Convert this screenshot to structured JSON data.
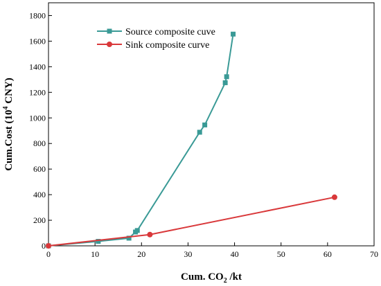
{
  "chart_data": {
    "type": "line",
    "xlabel_main": "Cum. CO",
    "xlabel_sub": "2",
    "xlabel_tail": " /kt",
    "ylabel_main": "Cum.Cost (10",
    "ylabel_sup": "4",
    "ylabel_tail": " CNY)",
    "xlim": [
      0,
      70
    ],
    "ylim": [
      0,
      1900
    ],
    "xticks": [
      0,
      10,
      20,
      30,
      40,
      50,
      60,
      70
    ],
    "yticks": [
      0,
      200,
      400,
      600,
      800,
      1000,
      1200,
      1400,
      1600,
      1800
    ],
    "grid": false,
    "legend_position": "top-left",
    "series": [
      {
        "name": "Source composite cuve",
        "color": "#3a9a96",
        "marker": "square",
        "points": [
          [
            0,
            0
          ],
          [
            10.7,
            35
          ],
          [
            17.3,
            60
          ],
          [
            18.7,
            108
          ],
          [
            19.1,
            120
          ],
          [
            32.5,
            888
          ],
          [
            33.6,
            945
          ],
          [
            38.0,
            1275
          ],
          [
            38.3,
            1322
          ],
          [
            39.7,
            1655
          ]
        ]
      },
      {
        "name": "Sink composite curve",
        "color": "#d9383a",
        "marker": "circle",
        "points": [
          [
            0,
            0
          ],
          [
            21.8,
            88
          ],
          [
            61.5,
            380
          ]
        ]
      }
    ]
  }
}
